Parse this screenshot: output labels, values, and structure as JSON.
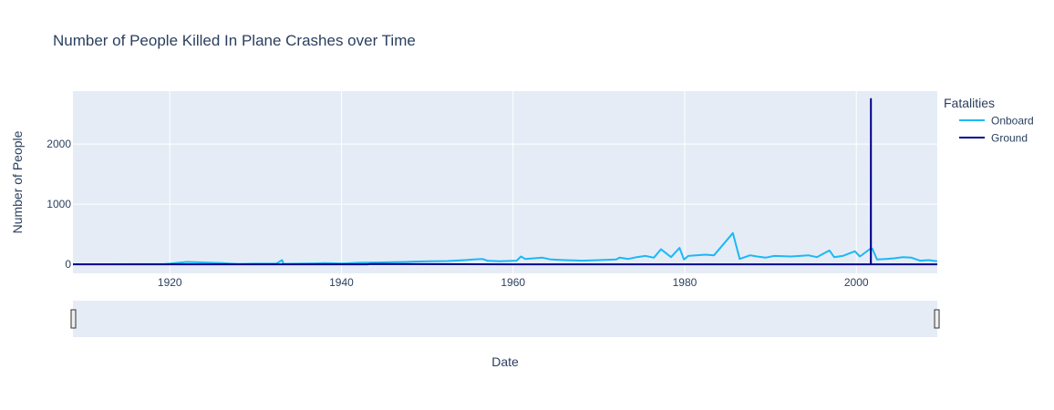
{
  "chart_data": {
    "type": "line",
    "title": "Number of People Killed In Plane Crashes over Time",
    "xlabel": "Date",
    "ylabel": "Number of People",
    "xlim": [
      "1908-09-17",
      "2009-06-08"
    ],
    "ylim": [
      -150,
      2880
    ],
    "x_ticks": [
      "1920",
      "1940",
      "1960",
      "1980",
      "2000"
    ],
    "y_ticks": [
      0,
      1000,
      2000
    ],
    "y_tick_labels": [
      "0",
      "1000",
      "2000"
    ],
    "legend_title": "Fatalities",
    "legend_position": "right",
    "grid": true,
    "range_slider": true,
    "colors": {
      "plot_bg": "#e5ecf6",
      "grid": "#ffffff"
    },
    "series": [
      {
        "name": "Onboard",
        "color": "#1cb8f5",
        "x": [
          "1908-09-17",
          "1913-01-01",
          "1919-06-01",
          "1920-01-01",
          "1921-01-01",
          "1922-01-01",
          "1924-01-01",
          "1926-01-01",
          "1928-01-01",
          "1930-01-01",
          "1932-06-01",
          "1933-02-01",
          "1933-04-01",
          "1935-01-01",
          "1937-01-01",
          "1938-01-01",
          "1940-01-01",
          "1942-01-01",
          "1944-01-01",
          "1946-01-01",
          "1947-06-01",
          "1948-06-01",
          "1950-06-01",
          "1952-06-01",
          "1954-06-01",
          "1955-06-01",
          "1956-06-01",
          "1957-01-01",
          "1958-06-01",
          "1960-06-01",
          "1960-12-01",
          "1961-06-01",
          "1962-06-01",
          "1963-06-01",
          "1964-06-01",
          "1966-01-01",
          "1968-01-01",
          "1970-01-01",
          "1972-01-01",
          "1972-06-01",
          "1973-06-01",
          "1974-06-01",
          "1975-06-01",
          "1976-06-01",
          "1977-03-27",
          "1978-06-01",
          "1979-05-25",
          "1979-12-01",
          "1980-06-01",
          "1982-06-01",
          "1983-06-01",
          "1985-08-12",
          "1986-06-01",
          "1987-08-16",
          "1988-06-01",
          "1989-06-01",
          "1990-06-01",
          "1992-06-01",
          "1993-06-01",
          "1994-06-01",
          "1995-06-01",
          "1996-11-12",
          "1997-06-01",
          "1998-06-01",
          "1999-10-31",
          "2000-06-01",
          "2001-09-11",
          "2001-11-12",
          "2002-06-01",
          "2003-06-01",
          "2004-06-01",
          "2005-06-01",
          "2006-06-01",
          "2007-06-01",
          "2008-06-01",
          "2009-06-01"
        ],
        "values": [
          1,
          2,
          5,
          10,
          25,
          40,
          30,
          20,
          5,
          10,
          12,
          70,
          8,
          10,
          15,
          20,
          12,
          25,
          30,
          35,
          40,
          45,
          50,
          55,
          70,
          80,
          90,
          60,
          50,
          60,
          130,
          90,
          100,
          110,
          80,
          70,
          60,
          70,
          80,
          110,
          90,
          120,
          140,
          110,
          250,
          120,
          273,
          80,
          140,
          160,
          150,
          520,
          90,
          150,
          130,
          110,
          140,
          130,
          140,
          150,
          120,
          230,
          120,
          140,
          217,
          130,
          265,
          260,
          80,
          90,
          100,
          120,
          110,
          60,
          70,
          50
        ]
      },
      {
        "name": "Ground",
        "color": "#00008b",
        "x": [
          "1908-09-17",
          "1943-01-01",
          "1943-06-01",
          "1960-01-01",
          "1980-01-01",
          "1990-01-01",
          "2001-09-10",
          "2001-09-11",
          "2001-09-12",
          "2005-01-01",
          "2009-06-08"
        ],
        "values": [
          0,
          0,
          5,
          0,
          0,
          0,
          0,
          2750,
          0,
          0,
          0
        ]
      }
    ]
  }
}
